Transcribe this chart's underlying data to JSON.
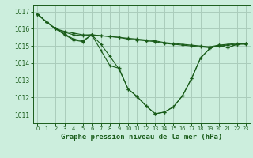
{
  "title": "Graphe pression niveau de la mer (hPa)",
  "bg_color": "#cceedd",
  "grid_color": "#aaccbb",
  "line_color": "#1a5c1a",
  "x_min": -0.5,
  "x_max": 23.5,
  "y_min": 1010.5,
  "y_max": 1017.4,
  "yticks": [
    1011,
    1012,
    1013,
    1014,
    1015,
    1016,
    1017
  ],
  "xticks": [
    0,
    1,
    2,
    3,
    4,
    5,
    6,
    7,
    8,
    9,
    10,
    11,
    12,
    13,
    14,
    15,
    16,
    17,
    18,
    19,
    20,
    21,
    22,
    23
  ],
  "series": [
    [
      1016.85,
      1016.4,
      1016.0,
      1015.85,
      1015.75,
      1015.65,
      1015.65,
      1015.6,
      1015.55,
      1015.5,
      1015.45,
      1015.4,
      1015.35,
      1015.3,
      1015.2,
      1015.15,
      1015.1,
      1015.05,
      1015.0,
      1014.95,
      1015.05,
      1015.1,
      1015.15,
      1015.15
    ],
    [
      1016.85,
      1016.4,
      1016.0,
      1015.8,
      1015.65,
      1015.6,
      1015.65,
      1015.6,
      1015.55,
      1015.5,
      1015.4,
      1015.35,
      1015.3,
      1015.25,
      1015.15,
      1015.1,
      1015.05,
      1015.0,
      1014.95,
      1014.9,
      1015.0,
      1015.05,
      1015.1,
      1015.1
    ],
    [
      1016.85,
      1016.4,
      1016.0,
      1015.7,
      1015.4,
      1015.3,
      1015.65,
      1015.1,
      1014.4,
      1013.65,
      1012.5,
      1012.05,
      1011.5,
      1011.05,
      1011.15,
      1011.45,
      1012.1,
      1013.1,
      1014.3,
      1014.85,
      1015.05,
      1014.9,
      1015.1,
      1015.15
    ],
    [
      1016.85,
      1016.4,
      1016.0,
      1015.65,
      1015.35,
      1015.25,
      1015.65,
      1014.75,
      1013.85,
      1013.7,
      1012.5,
      1012.05,
      1011.5,
      1011.05,
      1011.15,
      1011.45,
      1012.1,
      1013.1,
      1014.3,
      1014.85,
      1015.05,
      1014.9,
      1015.1,
      1015.15
    ]
  ]
}
